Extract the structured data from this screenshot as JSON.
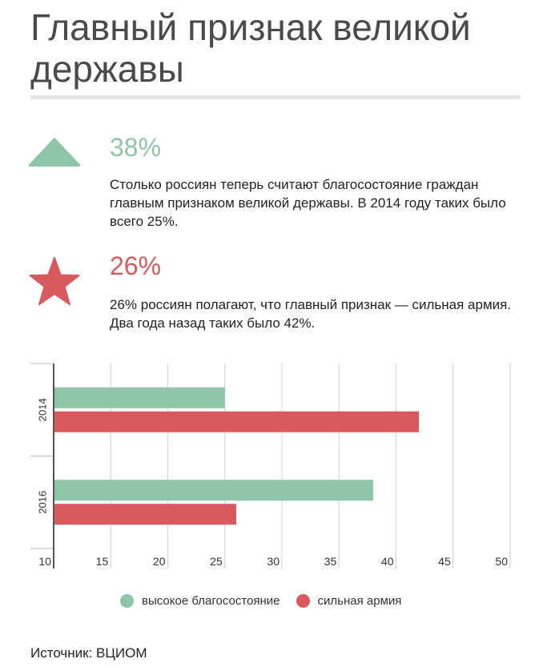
{
  "header": {
    "title": "Главный признак великой державы"
  },
  "facts": [
    {
      "value": "38%",
      "text": "Столько россиян теперь считают благосостояние граждан главным признаком великой державы. В 2014 году таких было всего 25%.",
      "icon": "triangle-up-icon",
      "color": "#8ec5a6"
    },
    {
      "value": "26%",
      "text": "26% россиян полагают, что главный признак — сильная армия. Два года назад таких было 42%.",
      "icon": "star-icon",
      "color": "#d85a5f"
    }
  ],
  "chart_data": {
    "type": "bar",
    "orientation": "horizontal",
    "categories": [
      "2014",
      "2016"
    ],
    "series": [
      {
        "name": "высокое благосостояние",
        "values": [
          25,
          38
        ],
        "color": "#8ec5a6"
      },
      {
        "name": "сильная армия",
        "values": [
          42,
          26
        ],
        "color": "#d85a5f"
      }
    ],
    "xlim": [
      10,
      50
    ],
    "xticks": [
      10,
      15,
      20,
      25,
      30,
      35,
      40,
      45,
      50
    ],
    "grid": true,
    "legend": "bottom"
  },
  "source": "Источник: ВЦИОМ"
}
